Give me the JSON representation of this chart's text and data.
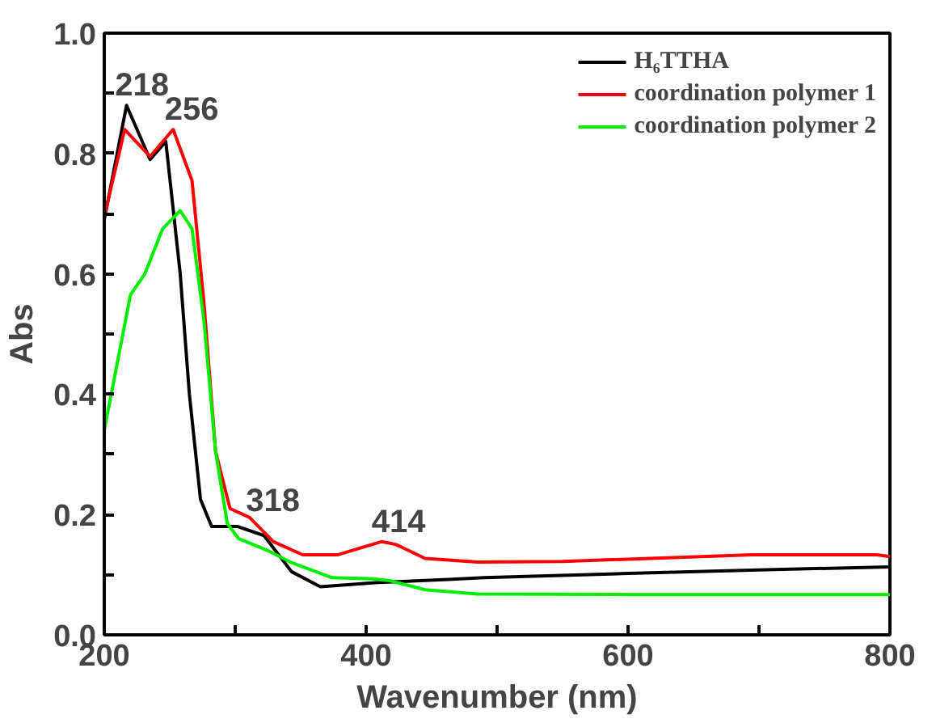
{
  "chart_data": {
    "type": "line",
    "xlabel": "Wavenumber (nm)",
    "ylabel": "Abs",
    "xlim": [
      200,
      800
    ],
    "ylim": [
      0.0,
      1.0
    ],
    "xticks": [
      200,
      {
        "value": 300,
        "label": null
      },
      400,
      {
        "value": 500,
        "label": null
      },
      600,
      {
        "value": 700,
        "label": null
      },
      800
    ],
    "yticks": [
      "0.0",
      {
        "value": 0.1,
        "label": null
      },
      0.2,
      {
        "value": 0.3,
        "label": null
      },
      0.4,
      {
        "value": 0.5,
        "label": null
      },
      0.6,
      {
        "value": 0.7,
        "label": null
      },
      0.8,
      {
        "value": 0.9,
        "label": null
      },
      "1.0"
    ],
    "grid": false,
    "legend": "top right",
    "marker": "none",
    "line_style": "solid",
    "series": [
      {
        "name": "H₆TTHA",
        "color": "#000000",
        "x": [
          200,
          217,
          235,
          247,
          258,
          265,
          273.5,
          282,
          302,
          322,
          343,
          365,
          409,
          463,
          490,
          600,
          700,
          800
        ],
        "values": [
          0.69,
          0.88,
          0.79,
          0.82,
          0.6,
          0.4,
          0.225,
          0.18,
          0.18,
          0.165,
          0.105,
          0.08,
          0.087,
          0.092,
          0.095,
          0.102,
          0.108,
          0.113
        ]
      },
      {
        "name": "coordination polymer 1",
        "color": "#ff0000",
        "x": [
          200,
          215.6,
          235,
          252.6,
          267,
          276,
          285,
          296,
          311,
          329,
          351.5,
          378,
          412,
          423,
          445,
          485,
          550,
          695,
          790,
          800
        ],
        "values": [
          0.695,
          0.84,
          0.795,
          0.84,
          0.755,
          0.555,
          0.305,
          0.21,
          0.195,
          0.155,
          0.133,
          0.133,
          0.155,
          0.15,
          0.127,
          0.121,
          0.122,
          0.133,
          0.133,
          0.13
        ]
      },
      {
        "name": "coordination polymer 2",
        "color": "#00ee00",
        "x": [
          200,
          220,
          231,
          244.6,
          258,
          267,
          276,
          285,
          294,
          302.5,
          325,
          343,
          374,
          405,
          418,
          445,
          485,
          600,
          800
        ],
        "values": [
          0.34,
          0.565,
          0.6,
          0.675,
          0.705,
          0.675,
          0.525,
          0.305,
          0.185,
          0.16,
          0.14,
          0.12,
          0.095,
          0.093,
          0.09,
          0.075,
          0.068,
          0.067,
          0.067
        ]
      }
    ],
    "annotations": [
      {
        "text": "218",
        "x": 218,
        "y": 0.88
      },
      {
        "text": "256",
        "x": 256,
        "y": 0.84
      },
      {
        "text": "318",
        "x": 318,
        "y": 0.19
      },
      {
        "text": "414",
        "x": 414,
        "y": 0.155
      }
    ]
  }
}
